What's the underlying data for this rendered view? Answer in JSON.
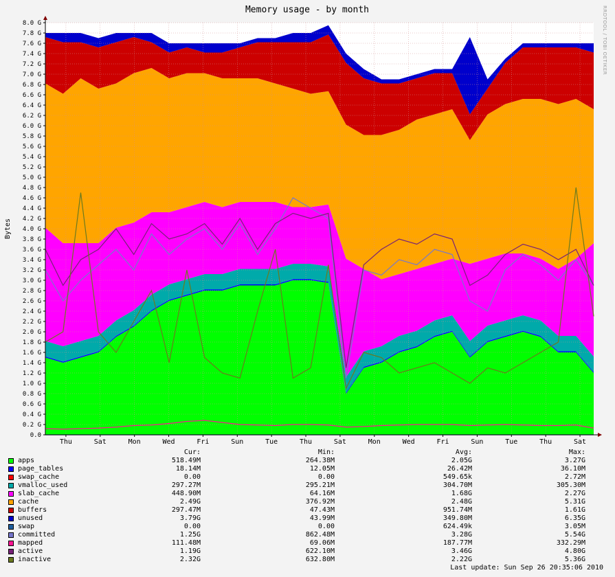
{
  "chart_data": {
    "type": "area",
    "title": "Memory usage - by month",
    "ylabel": "Bytes",
    "ylim": [
      0,
      8.0
    ],
    "y_unit": "G",
    "y_ticks": [
      "0.0",
      "0.2 G",
      "0.4 G",
      "0.6 G",
      "0.8 G",
      "1.0 G",
      "1.2 G",
      "1.4 G",
      "1.6 G",
      "1.8 G",
      "2.0 G",
      "2.2 G",
      "2.4 G",
      "2.6 G",
      "2.8 G",
      "3.0 G",
      "3.2 G",
      "3.4 G",
      "3.6 G",
      "3.8 G",
      "4.0 G",
      "4.2 G",
      "4.4 G",
      "4.6 G",
      "4.8 G",
      "5.0 G",
      "5.2 G",
      "5.4 G",
      "5.6 G",
      "5.8 G",
      "6.0 G",
      "6.2 G",
      "6.4 G",
      "6.6 G",
      "6.8 G",
      "7.0 G",
      "7.2 G",
      "7.4 G",
      "7.6 G",
      "7.8 G",
      "8.0 G"
    ],
    "x_ticks": [
      "Thu",
      "Sat",
      "Mon",
      "Wed",
      "Fri",
      "Sun",
      "Tue",
      "Thu",
      "Sat",
      "Mon",
      "Wed",
      "Fri",
      "Sun",
      "Tue",
      "Thu",
      "Sat"
    ],
    "x": [
      0,
      1,
      2,
      3,
      4,
      5,
      6,
      7,
      8,
      9,
      10,
      11,
      12,
      13,
      14,
      15,
      16,
      17,
      18,
      19,
      20,
      21,
      22,
      23,
      24,
      25,
      26,
      27,
      28,
      29,
      30,
      31
    ],
    "stack_series": [
      {
        "name": "apps",
        "color": "#00ff00",
        "values": [
          1.5,
          1.4,
          1.5,
          1.6,
          1.9,
          2.1,
          2.4,
          2.6,
          2.7,
          2.8,
          2.8,
          2.9,
          2.9,
          2.9,
          3.0,
          3.0,
          2.95,
          0.8,
          1.3,
          1.4,
          1.6,
          1.7,
          1.9,
          2.0,
          1.5,
          1.8,
          1.9,
          2.0,
          1.9,
          1.6,
          1.6,
          1.2
        ]
      },
      {
        "name": "page_tables",
        "color": "#0000ff",
        "values": [
          0.02,
          0.02,
          0.02,
          0.02,
          0.02,
          0.02,
          0.02,
          0.02,
          0.02,
          0.02,
          0.02,
          0.02,
          0.02,
          0.02,
          0.02,
          0.02,
          0.02,
          0.02,
          0.02,
          0.02,
          0.02,
          0.02,
          0.02,
          0.02,
          0.02,
          0.02,
          0.02,
          0.02,
          0.02,
          0.02,
          0.02,
          0.02
        ]
      },
      {
        "name": "swap_cache",
        "color": "#ff0000",
        "values": [
          0,
          0,
          0,
          0,
          0,
          0,
          0,
          0,
          0,
          0,
          0,
          0,
          0,
          0,
          0,
          0,
          0,
          0,
          0,
          0,
          0,
          0,
          0,
          0,
          0,
          0,
          0,
          0,
          0,
          0,
          0,
          0
        ]
      },
      {
        "name": "vmalloc_used",
        "color": "#00aaaa",
        "values": [
          0.3,
          0.3,
          0.3,
          0.3,
          0.3,
          0.3,
          0.3,
          0.3,
          0.3,
          0.3,
          0.3,
          0.3,
          0.3,
          0.3,
          0.3,
          0.3,
          0.3,
          0.3,
          0.3,
          0.3,
          0.3,
          0.3,
          0.3,
          0.3,
          0.3,
          0.3,
          0.3,
          0.3,
          0.3,
          0.3,
          0.3,
          0.3
        ]
      },
      {
        "name": "slab_cache",
        "color": "#ff00ff",
        "values": [
          2.2,
          2.0,
          1.9,
          1.8,
          1.8,
          1.7,
          1.6,
          1.4,
          1.4,
          1.4,
          1.3,
          1.3,
          1.3,
          1.3,
          1.1,
          1.1,
          1.2,
          2.3,
          1.6,
          1.3,
          1.2,
          1.2,
          1.1,
          1.1,
          1.5,
          1.3,
          1.3,
          1.2,
          1.2,
          1.3,
          1.5,
          2.2
        ]
      },
      {
        "name": "cache",
        "color": "#ffa500",
        "values": [
          2.8,
          2.9,
          3.2,
          3.0,
          2.8,
          2.9,
          2.8,
          2.6,
          2.6,
          2.5,
          2.5,
          2.4,
          2.4,
          2.3,
          2.3,
          2.2,
          2.2,
          2.6,
          2.6,
          2.8,
          2.8,
          2.9,
          2.9,
          2.9,
          2.4,
          2.8,
          2.9,
          3.0,
          3.1,
          3.2,
          3.1,
          2.6
        ]
      },
      {
        "name": "buffers",
        "color": "#cc0000",
        "values": [
          0.9,
          1.0,
          0.7,
          0.8,
          0.8,
          0.7,
          0.5,
          0.5,
          0.5,
          0.4,
          0.5,
          0.6,
          0.7,
          0.8,
          0.9,
          1.0,
          1.1,
          1.2,
          1.1,
          1.0,
          0.9,
          0.8,
          0.8,
          0.7,
          0.5,
          0.5,
          0.8,
          1.0,
          1.0,
          1.1,
          1.0,
          1.1
        ]
      },
      {
        "name": "unused",
        "color": "#0000cc",
        "values": [
          0.08,
          0.18,
          0.18,
          0.18,
          0.18,
          0.08,
          0.18,
          0.18,
          0.08,
          0.18,
          0.18,
          0.08,
          0.08,
          0.08,
          0.18,
          0.18,
          0.18,
          0.18,
          0.18,
          0.08,
          0.08,
          0.08,
          0.08,
          0.08,
          1.5,
          0.18,
          0.08,
          0.08,
          0.08,
          0.08,
          0.08,
          0.18
        ]
      }
    ],
    "line_series": [
      {
        "name": "swap",
        "color": "#1f5f9f",
        "values": [
          0,
          0,
          0,
          0,
          0,
          0,
          0,
          0,
          0,
          0,
          0,
          0,
          0,
          0,
          0,
          0,
          0,
          0,
          0,
          0,
          0,
          0,
          0,
          0,
          0,
          0,
          0,
          0,
          0,
          0,
          0,
          0
        ]
      },
      {
        "name": "committed",
        "color": "#7777cc",
        "values": [
          3.2,
          2.6,
          3.0,
          3.3,
          3.6,
          3.2,
          3.9,
          3.5,
          3.8,
          4.0,
          3.6,
          4.1,
          3.5,
          4.0,
          4.6,
          4.4,
          4.2,
          1.1,
          3.2,
          3.1,
          3.4,
          3.3,
          3.6,
          3.5,
          2.6,
          2.4,
          3.2,
          3.5,
          3.3,
          3.0,
          3.4,
          2.9
        ]
      },
      {
        "name": "mapped",
        "color": "#ff1493",
        "values": [
          0.12,
          0.11,
          0.12,
          0.13,
          0.15,
          0.18,
          0.19,
          0.22,
          0.26,
          0.28,
          0.24,
          0.2,
          0.19,
          0.18,
          0.2,
          0.2,
          0.19,
          0.15,
          0.16,
          0.18,
          0.19,
          0.2,
          0.2,
          0.2,
          0.18,
          0.19,
          0.2,
          0.19,
          0.18,
          0.18,
          0.19,
          0.13
        ]
      },
      {
        "name": "active",
        "color": "#772277",
        "values": [
          3.6,
          2.9,
          3.4,
          3.6,
          4.0,
          3.5,
          4.1,
          3.8,
          3.9,
          4.1,
          3.7,
          4.2,
          3.6,
          4.1,
          4.3,
          4.2,
          4.3,
          1.3,
          3.3,
          3.6,
          3.8,
          3.7,
          3.9,
          3.8,
          2.9,
          3.1,
          3.5,
          3.7,
          3.6,
          3.4,
          3.6,
          2.9
        ]
      },
      {
        "name": "inactive",
        "color": "#6b7a1f",
        "values": [
          1.8,
          2.0,
          4.7,
          2.0,
          1.6,
          2.2,
          2.8,
          1.4,
          3.2,
          1.5,
          1.2,
          1.1,
          2.4,
          3.6,
          1.1,
          1.3,
          3.3,
          0.9,
          1.6,
          1.5,
          1.2,
          1.3,
          1.4,
          1.2,
          1.0,
          1.3,
          1.2,
          1.4,
          1.6,
          1.8,
          4.8,
          2.3
        ]
      }
    ]
  },
  "legend": {
    "headers": [
      "Cur:",
      "Min:",
      "Avg:",
      "Max:"
    ],
    "rows": [
      {
        "name": "apps",
        "color": "#00ff00",
        "cur": "518.49M",
        "min": "264.38M",
        "avg": "2.05G",
        "max": "3.27G"
      },
      {
        "name": "page_tables",
        "color": "#0000ff",
        "cur": "18.14M",
        "min": "12.05M",
        "avg": "26.42M",
        "max": "36.10M"
      },
      {
        "name": "swap_cache",
        "color": "#ff0000",
        "cur": "0.00",
        "min": "0.00",
        "avg": "549.65k",
        "max": "2.72M"
      },
      {
        "name": "vmalloc_used",
        "color": "#00aaaa",
        "cur": "297.27M",
        "min": "295.21M",
        "avg": "304.70M",
        "max": "305.30M"
      },
      {
        "name": "slab_cache",
        "color": "#ff00ff",
        "cur": "448.90M",
        "min": "64.16M",
        "avg": "1.68G",
        "max": "2.27G"
      },
      {
        "name": "cache",
        "color": "#ffa500",
        "cur": "2.49G",
        "min": "376.92M",
        "avg": "2.48G",
        "max": "5.31G"
      },
      {
        "name": "buffers",
        "color": "#cc0000",
        "cur": "297.47M",
        "min": "47.43M",
        "avg": "951.74M",
        "max": "1.61G"
      },
      {
        "name": "unused",
        "color": "#0000cc",
        "cur": "3.79G",
        "min": "43.99M",
        "avg": "349.80M",
        "max": "6.35G"
      },
      {
        "name": "swap",
        "color": "#1f5f9f",
        "cur": "0.00",
        "min": "0.00",
        "avg": "624.49k",
        "max": "3.05M"
      },
      {
        "name": "committed",
        "color": "#7777cc",
        "cur": "1.25G",
        "min": "862.48M",
        "avg": "3.28G",
        "max": "5.54G"
      },
      {
        "name": "mapped",
        "color": "#ff1493",
        "cur": "111.48M",
        "min": "69.06M",
        "avg": "187.77M",
        "max": "332.29M"
      },
      {
        "name": "active",
        "color": "#772277",
        "cur": "1.19G",
        "min": "622.10M",
        "avg": "3.46G",
        "max": "4.80G"
      },
      {
        "name": "inactive",
        "color": "#6b7a1f",
        "cur": "2.32G",
        "min": "632.80M",
        "avg": "2.22G",
        "max": "5.36G"
      }
    ]
  },
  "last_update": "Last update: Sun Sep 26 20:35:06 2010",
  "watermark": "RRDTOOL / TOBI OETIKER"
}
